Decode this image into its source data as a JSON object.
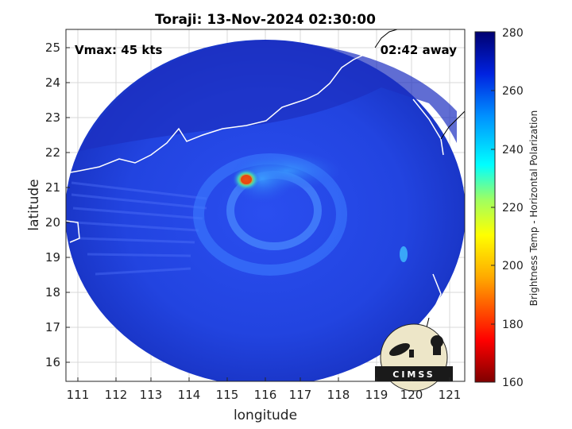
{
  "title": "Toraji: 13-Nov-2024 02:30:00",
  "vmax_label": "Vmax: 45 kts",
  "away_label": "02:42 away",
  "xaxis": {
    "label": "longitude",
    "ticks": [
      "111",
      "112",
      "113",
      "114",
      "115",
      "116",
      "117",
      "118",
      "119",
      "120",
      "121"
    ]
  },
  "yaxis": {
    "label": "latitude",
    "ticks": [
      "25",
      "24",
      "23",
      "22",
      "21",
      "20",
      "19",
      "18",
      "17",
      "16"
    ]
  },
  "colorbar": {
    "label": "Brightness Temp - Horizontal Polarization",
    "ticks": [
      "280",
      "260",
      "240",
      "220",
      "200",
      "180",
      "160"
    ]
  },
  "logo": {
    "text": "CIMSS"
  },
  "colors": {
    "background_blue": "#1f3ed8",
    "storm_core": "#e8c020",
    "coastline": "#ffffff"
  }
}
